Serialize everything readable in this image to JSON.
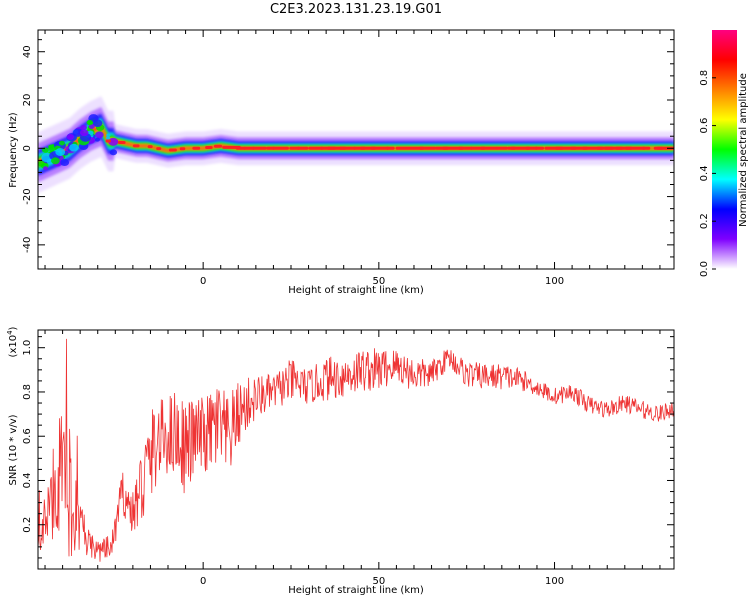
{
  "title": "C2E3.2023.131.23.19.G01",
  "chart_data": [
    {
      "type": "heatmap",
      "name": "spectrogram",
      "xlabel": "Height of straight line (km)",
      "ylabel": "Frequency (Hz)",
      "xlim": [
        -47,
        134
      ],
      "ylim": [
        -50,
        49
      ],
      "xticks": [
        0,
        50,
        100
      ],
      "xtick_labels": [
        "0",
        "50",
        "100"
      ],
      "yticks": [
        -40,
        -20,
        0,
        20,
        40
      ],
      "ytick_labels": [
        "-40",
        "-20",
        "0",
        "20",
        "40"
      ],
      "ridge": {
        "x": [
          -47,
          -44,
          -41,
          -38,
          -35,
          -32,
          -29,
          -27,
          -25,
          -22,
          -19,
          -16,
          -13,
          -10,
          -5,
          0,
          5,
          10,
          20,
          40,
          60,
          80,
          85,
          100,
          120,
          134
        ],
        "y": [
          -6,
          -4,
          -2,
          0,
          4,
          7,
          9,
          3,
          3,
          2,
          1,
          1,
          0,
          -1,
          0,
          0,
          1,
          0,
          0,
          0,
          0,
          0,
          0,
          0,
          0,
          0
        ]
      },
      "colorbar": {
        "label": "Normalized spectral amplitude",
        "range": [
          0,
          1
        ],
        "ticks": [
          0.0,
          0.2,
          0.4,
          0.6,
          0.8
        ],
        "tick_labels": [
          "0.0",
          "0.2",
          "0.4",
          "0.6",
          "0.8"
        ],
        "colors": [
          "#ffffff",
          "#7f00ff",
          "#0000ff",
          "#00ffff",
          "#00ff00",
          "#ffff00",
          "#ff7f00",
          "#ff0000",
          "#ff0080"
        ]
      }
    },
    {
      "type": "line",
      "name": "snr",
      "xlabel": "Height of straight line (km)",
      "ylabel": "SNR (10 * v/v)",
      "scale_label": "(x10",
      "scale_exp": "4",
      "scale_close": ")",
      "xlim": [
        -47,
        134
      ],
      "ylim": [
        0,
        1.08
      ],
      "xticks": [
        0,
        50,
        100
      ],
      "xtick_labels": [
        "0",
        "50",
        "100"
      ],
      "yticks": [
        0.2,
        0.4,
        0.6,
        0.8,
        1.0
      ],
      "ytick_labels": [
        "0.2",
        "0.4",
        "0.6",
        "0.8",
        "1.0"
      ],
      "color": "#ee3333",
      "envelope": {
        "x": [
          -47,
          -44,
          -41,
          -38,
          -35,
          -32,
          -29,
          -26,
          -23,
          -20,
          -17,
          -14,
          -11,
          -8,
          -5,
          -2,
          1,
          4,
          7,
          10,
          13,
          16,
          20,
          25,
          30,
          35,
          40,
          45,
          50,
          55,
          60,
          65,
          70,
          75,
          80,
          85,
          90,
          95,
          100,
          105,
          110,
          115,
          120,
          125,
          130,
          134
        ],
        "mean": [
          0.15,
          0.25,
          0.45,
          0.35,
          0.18,
          0.1,
          0.08,
          0.1,
          0.35,
          0.25,
          0.4,
          0.55,
          0.6,
          0.62,
          0.55,
          0.6,
          0.6,
          0.65,
          0.58,
          0.7,
          0.75,
          0.78,
          0.8,
          0.85,
          0.82,
          0.86,
          0.87,
          0.9,
          0.9,
          0.92,
          0.88,
          0.88,
          0.96,
          0.88,
          0.87,
          0.87,
          0.86,
          0.82,
          0.78,
          0.8,
          0.74,
          0.72,
          0.75,
          0.72,
          0.7,
          0.73
        ],
        "amp": [
          0.08,
          0.15,
          0.3,
          0.3,
          0.12,
          0.06,
          0.05,
          0.06,
          0.1,
          0.1,
          0.22,
          0.2,
          0.18,
          0.2,
          0.22,
          0.18,
          0.18,
          0.22,
          0.2,
          0.15,
          0.12,
          0.1,
          0.08,
          0.1,
          0.08,
          0.1,
          0.1,
          0.1,
          0.1,
          0.08,
          0.08,
          0.06,
          0.05,
          0.06,
          0.06,
          0.06,
          0.05,
          0.04,
          0.04,
          0.04,
          0.04,
          0.04,
          0.04,
          0.04,
          0.04,
          0.04
        ]
      }
    }
  ]
}
